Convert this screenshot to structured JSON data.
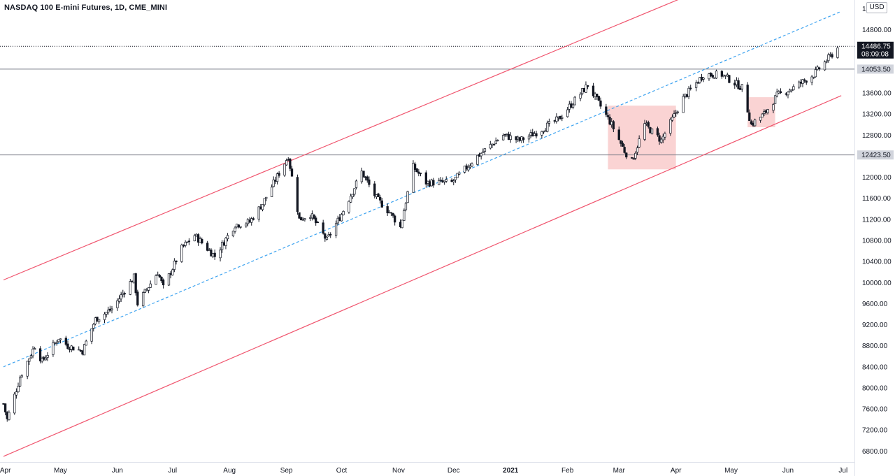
{
  "title": "NASDAQ 100 E-mini Futures, 1D, CME_MINI",
  "currency_button": "USD",
  "colors": {
    "channel": "#f0566f",
    "midline": "#3da3f0",
    "box_fill": "#f7b5b5",
    "candle": "#131722",
    "level_line": "#787b86",
    "axis_text": "#131722"
  },
  "chart_data": {
    "type": "candlestick",
    "y_axis": {
      "ticks": [
        "15200.00",
        "14800.00",
        "13600.00",
        "13200.00",
        "12800.00",
        "12000.00",
        "11600.00",
        "11200.00",
        "10800.00",
        "10400.00",
        "10000.00",
        "9600.00",
        "9200.00",
        "8800.00",
        "8400.00",
        "8000.00",
        "7600.00",
        "7200.00",
        "6800.00"
      ],
      "top_tick_partial": "15"
    },
    "x_axis": {
      "ticks": [
        "Apr",
        "May",
        "Jun",
        "Jul",
        "Aug",
        "Sep",
        "Oct",
        "Nov",
        "Dec",
        "2021",
        "Feb",
        "Mar",
        "Apr",
        "May",
        "Jun",
        "Jul"
      ]
    },
    "price_tags": [
      {
        "label": "14486.75",
        "subtext": "08:09:08",
        "value": 14486.75,
        "style": "current"
      },
      {
        "label": "14053.50",
        "value": 14053.5,
        "style": "level"
      },
      {
        "label": "12423.50",
        "value": 12423.5,
        "style": "level"
      }
    ],
    "horizontal_levels": [
      14053.5,
      12423.5
    ],
    "current_price_line": 14486.75,
    "trend_channel": {
      "upper_start": [
        "2020-03-31",
        10050
      ],
      "upper_end": [
        "2021-05-12",
        15950
      ],
      "mid_start": [
        "2020-03-31",
        8400
      ],
      "mid_end": [
        "2021-06-30",
        15150
      ],
      "lower_start": [
        "2020-03-31",
        6700
      ],
      "lower_end": [
        "2021-06-30",
        13550
      ]
    },
    "highlight_boxes": [
      {
        "from": "2021-02-23",
        "to": "2021-04-01",
        "low": 12150,
        "high": 13360
      },
      {
        "from": "2021-05-10",
        "to": "2021-05-25",
        "low": 12950,
        "high": 13520
      }
    ],
    "price_path": [
      [
        "2020-03-31",
        7700
      ],
      [
        "2020-04-02",
        7400
      ],
      [
        "2020-04-09",
        8200
      ],
      [
        "2020-04-17",
        8800
      ],
      [
        "2020-04-21",
        8500
      ],
      [
        "2020-04-30",
        8950
      ],
      [
        "2020-05-05",
        8800
      ],
      [
        "2020-05-13",
        8700
      ],
      [
        "2020-05-20",
        9300
      ],
      [
        "2020-05-29",
        9500
      ],
      [
        "2020-06-10",
        10100
      ],
      [
        "2020-06-12",
        9600
      ],
      [
        "2020-06-23",
        10200
      ],
      [
        "2020-06-26",
        9900
      ],
      [
        "2020-07-06",
        10650
      ],
      [
        "2020-07-13",
        10900
      ],
      [
        "2020-07-24",
        10500
      ],
      [
        "2020-08-04",
        11100
      ],
      [
        "2020-08-12",
        11150
      ],
      [
        "2020-08-19",
        11500
      ],
      [
        "2020-09-02",
        12400
      ],
      [
        "2020-09-08",
        11200
      ],
      [
        "2020-09-14",
        11300
      ],
      [
        "2020-09-23",
        10800
      ],
      [
        "2020-10-01",
        11300
      ],
      [
        "2020-10-12",
        12100
      ],
      [
        "2020-10-20",
        11600
      ],
      [
        "2020-10-28",
        11300
      ],
      [
        "2020-11-02",
        11050
      ],
      [
        "2020-11-09",
        12200
      ],
      [
        "2020-11-16",
        11900
      ],
      [
        "2020-11-30",
        11900
      ],
      [
        "2020-12-14",
        12400
      ],
      [
        "2020-12-28",
        12800
      ],
      [
        "2021-01-06",
        12700
      ],
      [
        "2021-01-15",
        12850
      ],
      [
        "2021-01-27",
        13100
      ],
      [
        "2021-02-12",
        13750
      ],
      [
        "2021-02-25",
        13000
      ],
      [
        "2021-03-04",
        12500
      ],
      [
        "2021-03-08",
        12300
      ],
      [
        "2021-03-15",
        13000
      ],
      [
        "2021-03-24",
        12700
      ],
      [
        "2021-04-05",
        13500
      ],
      [
        "2021-04-16",
        13950
      ],
      [
        "2021-04-26",
        13950
      ],
      [
        "2021-05-07",
        13700
      ],
      [
        "2021-05-12",
        13000
      ],
      [
        "2021-05-19",
        13200
      ],
      [
        "2021-05-26",
        13550
      ],
      [
        "2021-06-04",
        13700
      ],
      [
        "2021-06-15",
        13950
      ],
      [
        "2021-06-28",
        14450
      ]
    ]
  }
}
